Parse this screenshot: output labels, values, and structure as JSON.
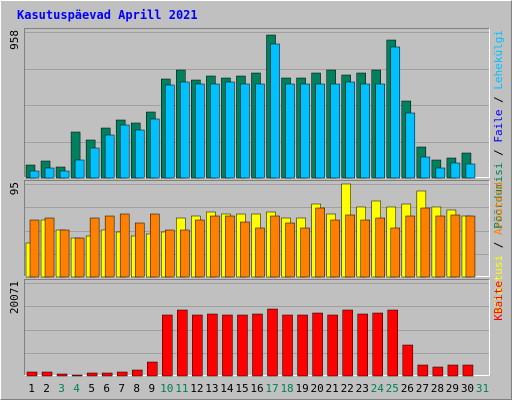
{
  "chart_data": {
    "type": "bar",
    "title": "Kasutuspäevad Aprill 2021",
    "categories": [
      "1",
      "2",
      "3",
      "4",
      "5",
      "6",
      "7",
      "8",
      "9",
      "10",
      "11",
      "12",
      "13",
      "14",
      "15",
      "16",
      "17",
      "18",
      "19",
      "20",
      "21",
      "22",
      "23",
      "24",
      "25",
      "26",
      "27",
      "28",
      "29",
      "30",
      "31"
    ],
    "weekend_days": [
      "3",
      "4",
      "10",
      "11",
      "17",
      "18",
      "24",
      "25",
      "31"
    ],
    "panels": [
      {
        "id": "top",
        "ymax_label": "958",
        "ylim": [
          0,
          958
        ],
        "right_labels": [
          {
            "text": "Pöördumisi",
            "color": "#00805c"
          },
          {
            "text": " / ",
            "color": "#000000"
          },
          {
            "text": "Faile",
            "color": "#0000ff"
          },
          {
            "text": " / ",
            "color": "#000000"
          },
          {
            "text": "Lehekülgi",
            "color": "#00c0ff"
          }
        ],
        "series": [
          {
            "name": "Pöördumisi",
            "color": "#00805c",
            "values": [
              88,
              112,
              75,
              300,
              250,
              330,
              378,
              358,
              430,
              650,
              708,
              645,
              668,
              658,
              668,
              688,
              938,
              658,
              658,
              688,
              708,
              678,
              688,
              708,
              908,
              508,
              203,
              118,
              128,
              165,
              0
            ]
          },
          {
            "name": "Faile",
            "color": "#00c0ff",
            "values": [
              48,
              68,
              48,
              118,
              195,
              280,
              345,
              315,
              390,
              608,
              628,
              618,
              618,
              628,
              618,
              618,
              878,
              618,
              618,
              618,
              618,
              628,
              618,
              618,
              858,
              428,
              140,
              68,
              98,
              95,
              0
            ]
          },
          {
            "name": "Lehekülgi",
            "color": "#0000ff",
            "values": [
              0,
              0,
              0,
              0,
              0,
              0,
              0,
              0,
              0,
              0,
              0,
              0,
              0,
              0,
              0,
              0,
              0,
              0,
              0,
              0,
              0,
              0,
              0,
              0,
              0,
              0,
              0,
              0,
              0,
              0,
              0
            ]
          }
        ]
      },
      {
        "id": "middle",
        "ymax_label": "95",
        "ylim": [
          0,
          95
        ],
        "right_labels": [
          {
            "text": "Külastusi",
            "color": "#ffff00"
          },
          {
            "text": " / ",
            "color": "#000000"
          },
          {
            "text": "Arvuteid",
            "color": "#ff8000"
          }
        ],
        "series": [
          {
            "name": "Külastusi",
            "color": "#ffff00",
            "values": [
              35,
              58,
              48,
              40,
              42,
              48,
              46,
              42,
              44,
              46,
              60,
              62,
              66,
              64,
              64,
              64,
              66,
              60,
              60,
              75,
              64,
              95,
              72,
              78,
              72,
              75,
              88,
              72,
              68,
              62,
              0
            ]
          },
          {
            "name": "Arvuteid",
            "color": "#ff8000",
            "values": [
              58,
              60,
              48,
              40,
              60,
              62,
              64,
              55,
              64,
              48,
              48,
              58,
              62,
              62,
              56,
              50,
              62,
              55,
              50,
              70,
              58,
              63,
              58,
              60,
              50,
              62,
              70,
              62,
              63,
              62,
              0
            ]
          }
        ]
      },
      {
        "id": "bottom",
        "ymax_label": "20071",
        "ylim": [
          0,
          20071
        ],
        "right_labels": [
          {
            "text": "KBaite",
            "color": "#ff0000"
          }
        ],
        "series": [
          {
            "name": "KBaite",
            "color": "#ff0000",
            "values": [
              800,
              800,
              500,
              300,
              700,
              600,
              800,
              1300,
              3100,
              13100,
              14200,
              13100,
              13400,
              13100,
              13100,
              13300,
              14400,
              13200,
              13100,
              13500,
              13200,
              14300,
              13400,
              13700,
              14200,
              6700,
              2300,
              2000,
              2300,
              2400,
              0
            ]
          }
        ]
      }
    ]
  }
}
